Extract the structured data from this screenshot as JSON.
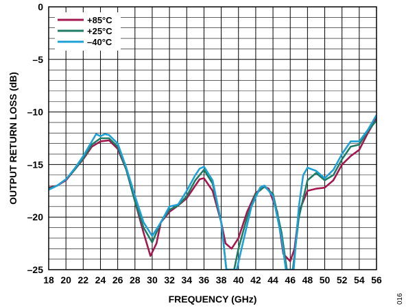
{
  "figure_code": "016",
  "chart_data": {
    "type": "line",
    "title": "",
    "xlabel": "FREQUENCY (GHz)",
    "ylabel": "OUTPUT RETURN LOSS (dB)",
    "xlim": [
      18,
      56
    ],
    "ylim": [
      -25,
      0
    ],
    "xticks": [
      18,
      20,
      22,
      24,
      26,
      28,
      30,
      32,
      34,
      36,
      38,
      40,
      42,
      44,
      46,
      48,
      50,
      52,
      54,
      56
    ],
    "yticks": [
      0,
      -5,
      -10,
      -15,
      -20,
      -25
    ],
    "xtick_labels": [
      "18",
      "20",
      "22",
      "24",
      "26",
      "28",
      "30",
      "32",
      "34",
      "36",
      "38",
      "40",
      "42",
      "44",
      "46",
      "48",
      "50",
      "52",
      "54",
      "56"
    ],
    "ytick_labels": [
      "0",
      "–5",
      "–10",
      "–15",
      "–20",
      "–25"
    ],
    "grid": true,
    "legend_position": "top-left",
    "series": [
      {
        "name": "+85°C",
        "color": "#a3174e",
        "points": [
          [
            18,
            -17.2
          ],
          [
            19,
            -17
          ],
          [
            20,
            -16.5
          ],
          [
            21,
            -15.5
          ],
          [
            22,
            -14.5
          ],
          [
            23,
            -13.3
          ],
          [
            24,
            -12.8
          ],
          [
            25,
            -12.7
          ],
          [
            26,
            -13.5
          ],
          [
            27,
            -15.5
          ],
          [
            28,
            -18.5
          ],
          [
            29,
            -21.5
          ],
          [
            29.8,
            -23.7
          ],
          [
            30.5,
            -22.5
          ],
          [
            31,
            -20.5
          ],
          [
            32,
            -19.5
          ],
          [
            33,
            -18.9
          ],
          [
            34,
            -18.2
          ],
          [
            35,
            -17
          ],
          [
            35.5,
            -16.4
          ],
          [
            36,
            -16.3
          ],
          [
            37,
            -17.5
          ],
          [
            38,
            -20.5
          ],
          [
            38.5,
            -22.5
          ],
          [
            39.2,
            -23
          ],
          [
            40,
            -22
          ],
          [
            41,
            -19.5
          ],
          [
            42,
            -17.7
          ],
          [
            43,
            -17.1
          ],
          [
            43.5,
            -17.3
          ],
          [
            44.5,
            -19.5
          ],
          [
            45.2,
            -23.5
          ],
          [
            46,
            -24.2
          ],
          [
            46.5,
            -23
          ],
          [
            47,
            -19.5
          ],
          [
            48,
            -17.5
          ],
          [
            49,
            -17.3
          ],
          [
            50,
            -17.2
          ],
          [
            51,
            -16.5
          ],
          [
            52,
            -15
          ],
          [
            53,
            -14.2
          ],
          [
            54,
            -13.6
          ],
          [
            55,
            -12
          ],
          [
            56,
            -10.6
          ]
        ]
      },
      {
        "name": "+25°C",
        "color": "#1e7b64",
        "points": [
          [
            18,
            -17.3
          ],
          [
            19,
            -17
          ],
          [
            20,
            -16.4
          ],
          [
            21,
            -15.5
          ],
          [
            22,
            -14.4
          ],
          [
            23,
            -13.1
          ],
          [
            24,
            -12.5
          ],
          [
            25,
            -12.5
          ],
          [
            26,
            -13.3
          ],
          [
            27,
            -15.5
          ],
          [
            28,
            -18.5
          ],
          [
            29,
            -21
          ],
          [
            30,
            -22.4
          ],
          [
            31,
            -20.5
          ],
          [
            32,
            -19.3
          ],
          [
            33,
            -18.9
          ],
          [
            34,
            -18
          ],
          [
            35,
            -16.5
          ],
          [
            36,
            -15.5
          ],
          [
            37,
            -16.8
          ],
          [
            38,
            -20.5
          ],
          [
            38.6,
            -25
          ],
          [
            39.5,
            -25
          ],
          [
            40,
            -23
          ],
          [
            41,
            -20
          ],
          [
            42,
            -17.8
          ],
          [
            43,
            -17.1
          ],
          [
            44,
            -17.8
          ],
          [
            45,
            -21.5
          ],
          [
            45.6,
            -25
          ],
          [
            46.3,
            -25
          ],
          [
            47,
            -20
          ],
          [
            48,
            -16.5
          ],
          [
            49,
            -15.8
          ],
          [
            50,
            -16.5
          ],
          [
            51,
            -16
          ],
          [
            52,
            -14.5
          ],
          [
            53,
            -13.3
          ],
          [
            54,
            -13.1
          ],
          [
            55,
            -11.8
          ],
          [
            56,
            -10.8
          ]
        ]
      },
      {
        "name": "–40°C",
        "color": "#1fa0d4",
        "points": [
          [
            18,
            -17.4
          ],
          [
            19,
            -17
          ],
          [
            20,
            -16.4
          ],
          [
            21,
            -15.4
          ],
          [
            22,
            -14.2
          ],
          [
            23,
            -12.8
          ],
          [
            23.5,
            -12.1
          ],
          [
            24,
            -12.3
          ],
          [
            24.5,
            -12.1
          ],
          [
            25,
            -12.2
          ],
          [
            26,
            -13
          ],
          [
            27,
            -15.3
          ],
          [
            28,
            -18
          ],
          [
            29,
            -20.5
          ],
          [
            30,
            -21.8
          ],
          [
            31,
            -20.5
          ],
          [
            32,
            -19
          ],
          [
            33,
            -18.8
          ],
          [
            34,
            -17.5
          ],
          [
            35,
            -16
          ],
          [
            35.5,
            -15.4
          ],
          [
            36,
            -15.2
          ],
          [
            37,
            -16.5
          ],
          [
            38,
            -20.5
          ],
          [
            38.6,
            -25
          ],
          [
            39.8,
            -25
          ],
          [
            40.5,
            -22.5
          ],
          [
            41.5,
            -19
          ],
          [
            42.5,
            -17.2
          ],
          [
            43,
            -17
          ],
          [
            44,
            -18
          ],
          [
            45,
            -22
          ],
          [
            45.5,
            -25
          ],
          [
            46.4,
            -25
          ],
          [
            47,
            -19
          ],
          [
            47.5,
            -16
          ],
          [
            48,
            -15.3
          ],
          [
            49,
            -15.6
          ],
          [
            50,
            -16.3
          ],
          [
            51,
            -15.5
          ],
          [
            52,
            -14
          ],
          [
            53,
            -12.8
          ],
          [
            54,
            -12.8
          ],
          [
            55,
            -11.7
          ],
          [
            56,
            -10.3
          ]
        ]
      }
    ]
  }
}
